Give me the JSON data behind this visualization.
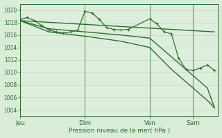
{
  "background_color": "#d8ecd8",
  "grid_color": "#c8dcc8",
  "plot_bg": "#ddeedd",
  "line_color": "#2d6e2d",
  "title": "Pression niveau de la mer( hPa )",
  "ylabel_ticks": [
    1004,
    1006,
    1008,
    1010,
    1012,
    1014,
    1016,
    1018,
    1020
  ],
  "ylim": [
    1003.0,
    1021.0
  ],
  "day_labels": [
    "Jeu",
    "Dim",
    "Ven",
    "Sam"
  ],
  "day_positions": [
    0,
    9,
    18,
    24
  ],
  "xtick_positions": [
    0,
    9,
    18,
    24
  ],
  "line1_x": [
    0,
    1,
    2,
    3,
    4,
    5,
    6,
    7,
    8,
    9,
    10,
    11,
    12,
    13,
    14,
    15,
    18,
    19,
    20,
    21,
    22,
    23,
    24,
    25,
    26,
    27
  ],
  "line1_y": [
    1018.5,
    1018.8,
    1018.3,
    1017.5,
    1016.8,
    1016.5,
    1016.3,
    1016.5,
    1016.8,
    1019.8,
    1019.5,
    1018.5,
    1017.2,
    1016.9,
    1016.8,
    1016.9,
    1018.6,
    1017.8,
    1016.5,
    1016.2,
    1012.3,
    1010.5,
    1010.3,
    1010.7,
    1011.2,
    1010.3
  ],
  "line2_x": [
    0,
    27
  ],
  "line2_y": [
    1018.3,
    1016.5
  ],
  "line3_x": [
    0,
    4,
    9,
    14,
    18,
    21,
    24,
    25,
    26,
    27
  ],
  "line3_y": [
    1018.3,
    1017.0,
    1016.5,
    1016.0,
    1015.5,
    1012.5,
    1009.5,
    1008.5,
    1007.5,
    1004.3
  ],
  "line4_x": [
    0,
    4,
    9,
    14,
    18,
    21,
    24,
    25,
    26,
    27
  ],
  "line4_y": [
    1018.3,
    1016.5,
    1015.8,
    1015.0,
    1014.0,
    1010.5,
    1007.5,
    1006.5,
    1005.5,
    1004.3
  ],
  "xlim": [
    0,
    27.5
  ],
  "figsize": [
    3.2,
    2.0
  ],
  "dpi": 100
}
